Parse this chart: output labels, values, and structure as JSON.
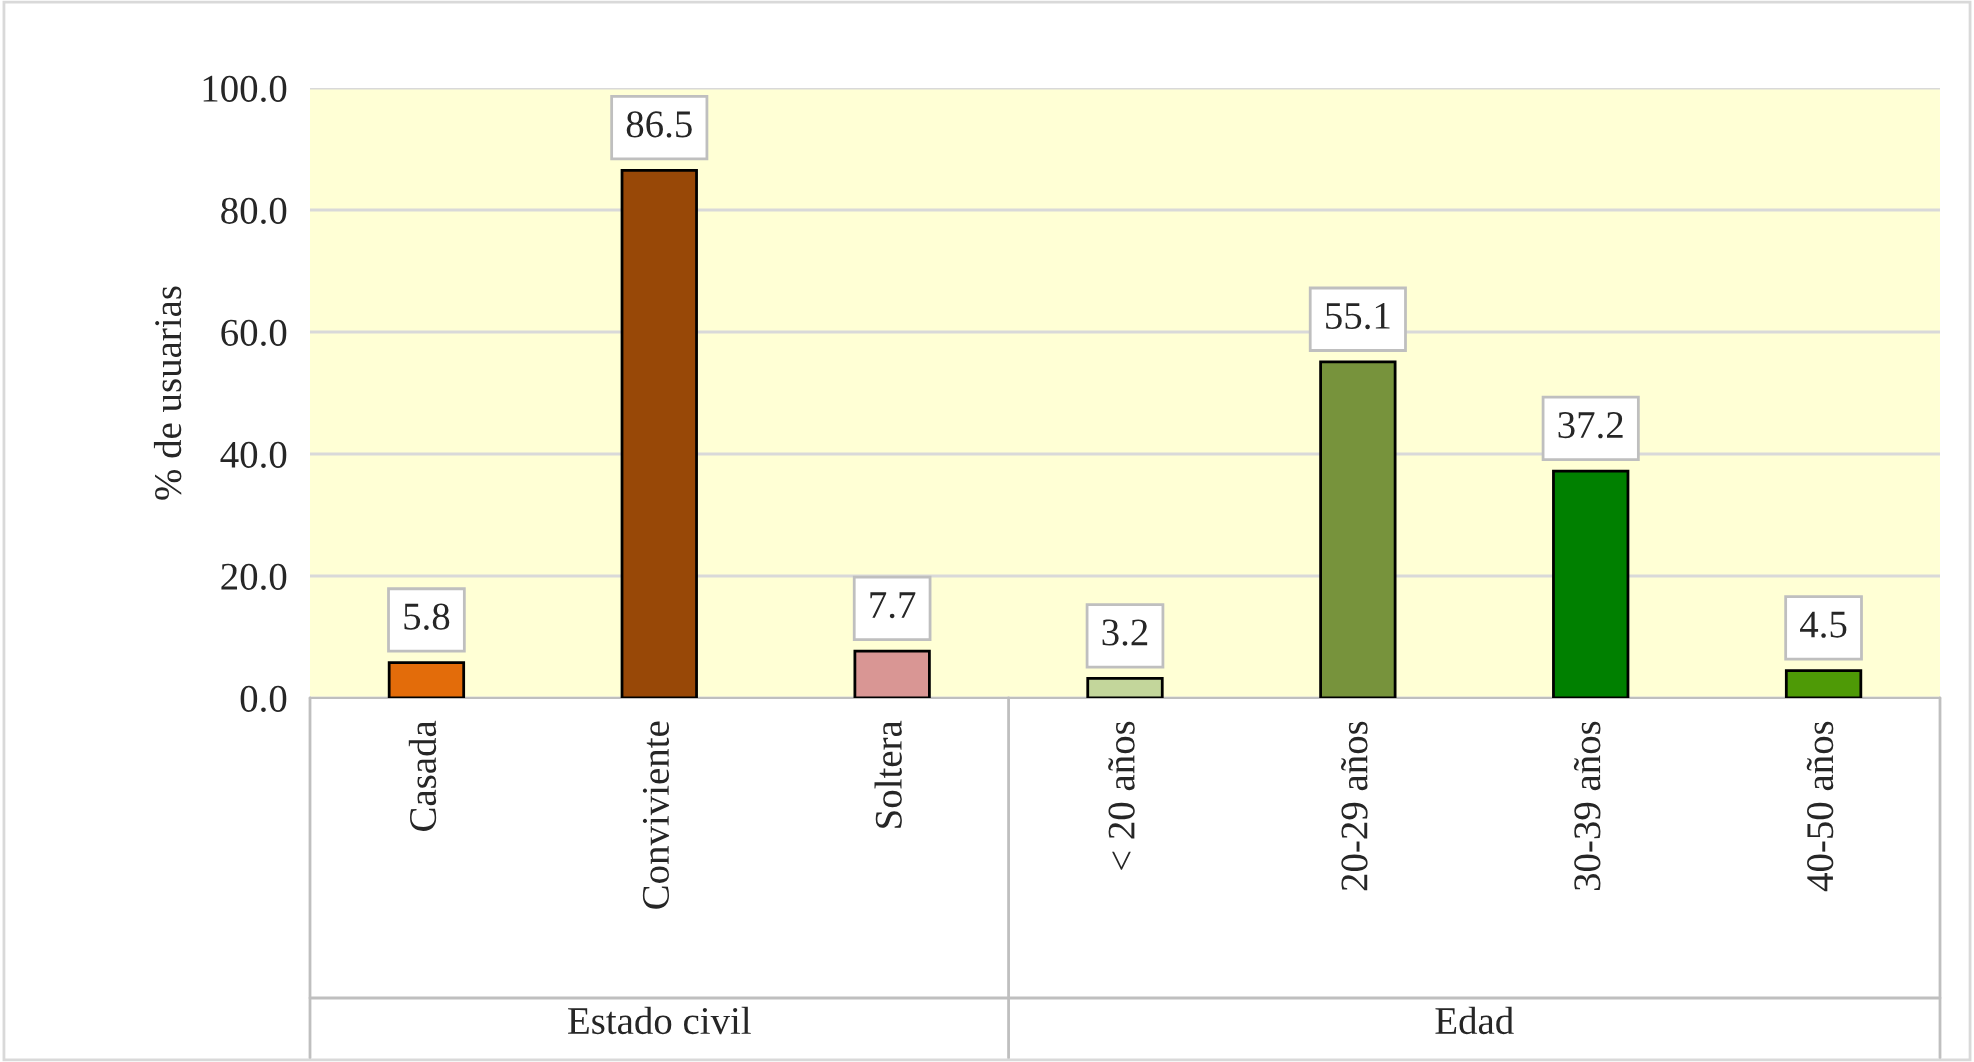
{
  "chart_data": {
    "type": "bar",
    "ylabel": "% de usuarias",
    "categories": [
      "Casada",
      "Conviviente",
      "Soltera",
      "< 20 años",
      "20-29 años",
      "30-39 años",
      "40-50 años"
    ],
    "values": [
      5.8,
      86.5,
      7.7,
      3.2,
      55.1,
      37.2,
      4.5
    ],
    "colors": [
      "#e36c0a",
      "#984807",
      "#d99694",
      "#c3d69b",
      "#77933c",
      "#008000",
      "#4e9a06"
    ],
    "ylim": [
      0,
      100
    ],
    "yticks": [
      {
        "value": 0,
        "label": "0.0"
      },
      {
        "value": 20,
        "label": "20.0"
      },
      {
        "value": 40,
        "label": "40.0"
      },
      {
        "value": 60,
        "label": "60.0"
      },
      {
        "value": 80,
        "label": "80.0"
      },
      {
        "value": 100,
        "label": "100.0"
      }
    ],
    "grid": "y",
    "data_labels": true,
    "annotations": [
      "Estado civil",
      "Edad"
    ]
  }
}
